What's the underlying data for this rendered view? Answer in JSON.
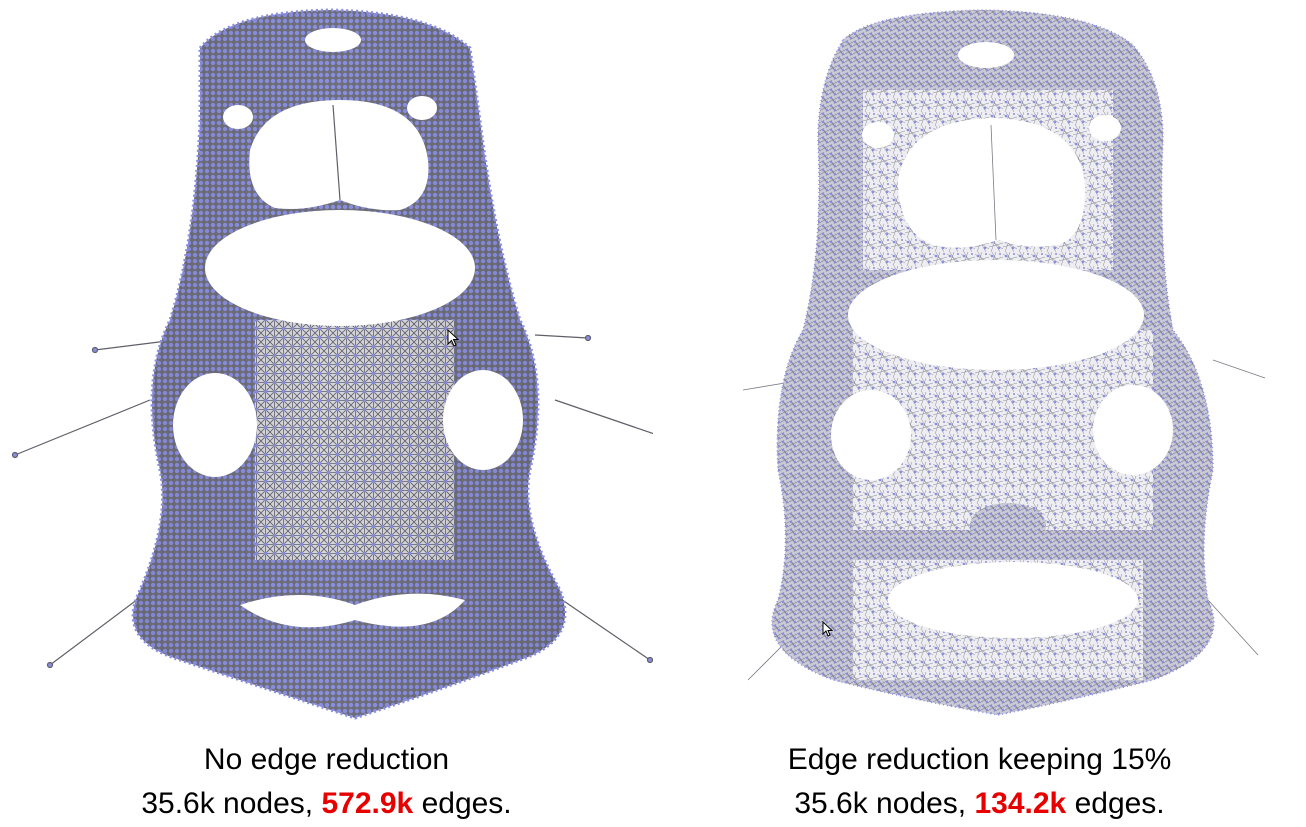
{
  "panels": [
    {
      "id": "no-reduction",
      "line1": "No edge reduction",
      "line2_prefix": "35.6k nodes, ",
      "line2_highlight": "572.9k",
      "line2_suffix": " edges."
    },
    {
      "id": "reduced",
      "line1": "Edge reduction keeping 15%",
      "line2_prefix": "35.6k nodes, ",
      "line2_highlight": "134.2k",
      "line2_suffix": " edges."
    }
  ],
  "colors": {
    "node": "#8a8ee0",
    "edge": "#6f6f78",
    "highlight": "#e60000",
    "text": "#000000"
  },
  "icons": [
    "mouse-cursor-icon"
  ]
}
